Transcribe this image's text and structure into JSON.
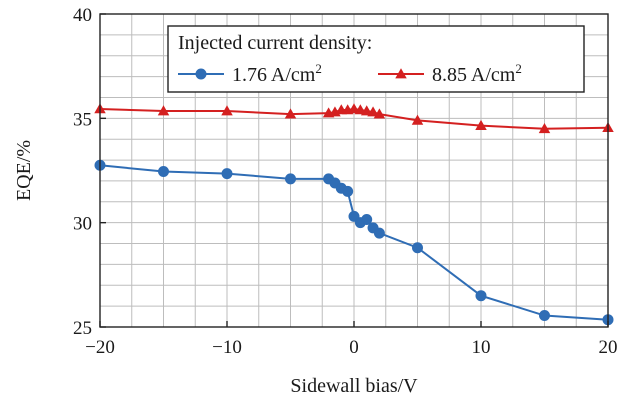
{
  "chart_data": {
    "type": "line",
    "title": "",
    "xlabel": "Sidewall bias/V",
    "ylabel": "EQE/%",
    "xlim": [
      -20,
      20
    ],
    "ylim": [
      25,
      40
    ],
    "xticks": [
      -20,
      -10,
      0,
      10,
      20
    ],
    "yticks": [
      25,
      30,
      35,
      40
    ],
    "xtick_labels": [
      "−20",
      "−10",
      "0",
      "10",
      "20"
    ],
    "ytick_labels": [
      "25",
      "30",
      "35",
      "40"
    ],
    "grid": true,
    "legend": {
      "title": "Injected current density:",
      "placement": "top-right"
    },
    "series": [
      {
        "name": "1.76 A/cm",
        "name_sup": "2",
        "color": "#2f6db5",
        "marker": "circle",
        "x": [
          -20,
          -15,
          -10,
          -5,
          -2,
          -1.5,
          -1,
          -0.5,
          0,
          0.5,
          1,
          1.5,
          2,
          5,
          10,
          15,
          20
        ],
        "y": [
          32.75,
          32.45,
          32.35,
          32.1,
          32.1,
          31.9,
          31.65,
          31.5,
          30.3,
          30.0,
          30.15,
          29.75,
          29.5,
          28.8,
          26.5,
          25.55,
          25.35
        ]
      },
      {
        "name": "8.85 A/cm",
        "name_sup": "2",
        "color": "#d42020",
        "marker": "triangle",
        "x": [
          -20,
          -15,
          -10,
          -5,
          -2,
          -1.5,
          -1,
          -0.5,
          0,
          0.5,
          1,
          1.5,
          2,
          5,
          10,
          15,
          20
        ],
        "y": [
          35.45,
          35.35,
          35.35,
          35.2,
          35.25,
          35.3,
          35.4,
          35.4,
          35.45,
          35.4,
          35.35,
          35.3,
          35.2,
          34.9,
          34.65,
          34.5,
          34.55
        ]
      }
    ]
  }
}
